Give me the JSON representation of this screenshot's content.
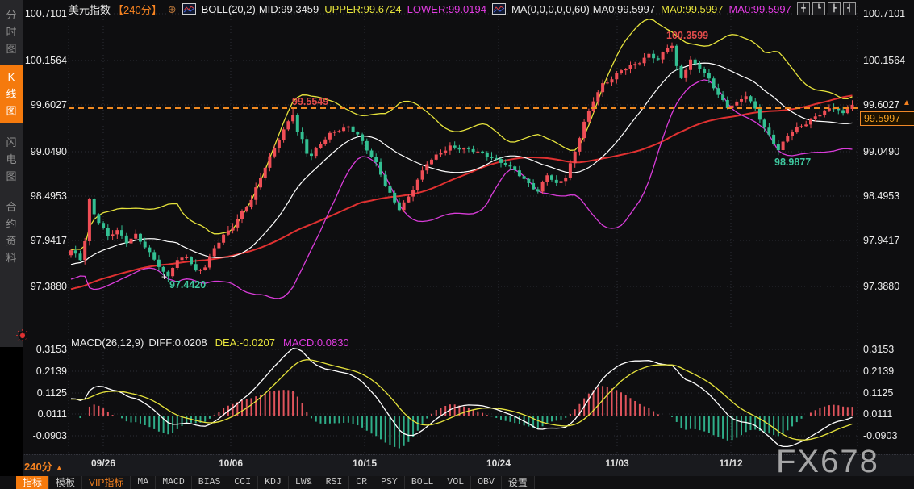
{
  "header": {
    "symbol": "美元指数",
    "period": "【240分】",
    "boll": {
      "name": "BOLL(20,2)",
      "mid": "MID:99.3459",
      "upper": "UPPER:99.6724",
      "lower": "LOWER:99.0194"
    },
    "ma": {
      "name": "MA(0,0,0,0,0,60)",
      "m1": "MA0:99.5997",
      "m2": "MA0:99.5997",
      "m3": "MA0:99.5997"
    }
  },
  "sidebar": {
    "items": [
      "分时图",
      "K线图",
      "闪电图",
      "合约资料"
    ]
  },
  "axis": {
    "price": [
      "100.7101",
      "100.1564",
      "99.6027",
      "99.0490",
      "98.4953",
      "97.9417",
      "97.3880"
    ],
    "macd": [
      "0.3153",
      "0.2139",
      "0.1125",
      "0.0111",
      "-0.0903"
    ],
    "dates": [
      "09/26",
      "10/06",
      "10/15",
      "10/24",
      "11/03",
      "11/12"
    ],
    "price_tag": "99.5997"
  },
  "macd_header": {
    "name": "MACD(26,12,9)",
    "diff": "DIFF:0.0208",
    "dea": "DEA:-0.0207",
    "macd": "MACD:0.0830"
  },
  "annotations": {
    "h_mid": "99.5549",
    "h_top": "100.3599",
    "l_left": "97.4420",
    "l_right": "98.9877",
    "cross": "+"
  },
  "footer": {
    "period": "240分",
    "arrow": "▲",
    "tabs": [
      "指标",
      "模板",
      "VIP指标",
      "MA",
      "MACD",
      "BIAS",
      "CCI",
      "KDJ",
      "LW&",
      "RSI",
      "CR",
      "PSY",
      "BOLL",
      "VOL",
      "OBV",
      "设置"
    ]
  },
  "topright_icons": [
    "╋",
    "┗",
    "┣",
    "┫"
  ],
  "watermark": "FX678",
  "chart_data": {
    "type": "candlestick",
    "symbol": "美元指数",
    "period": "240分",
    "title": "美元指数 240分 K线图 (BOLL 20,2 / MA60 / MACD 26,12,9)",
    "price_axis": [
      100.7101,
      100.1564,
      99.6027,
      99.049,
      98.4953,
      97.9417,
      97.388
    ],
    "macd_axis": [
      0.3153,
      0.2139,
      0.1125,
      0.0111,
      -0.0903
    ],
    "x_dates": [
      "09/26",
      "10/06",
      "10/15",
      "10/24",
      "11/03",
      "11/12"
    ],
    "current_price": 99.5997,
    "indicators": {
      "boll": {
        "mid": 99.3459,
        "upper": 99.6724,
        "lower": 99.0194
      },
      "ma60": 99.5997,
      "macd": {
        "diff": 0.0208,
        "dea": -0.0207,
        "macd": 0.083
      }
    },
    "close_keypoints": [
      [
        0,
        97.82
      ],
      [
        2,
        97.72
      ],
      [
        3,
        97.95
      ],
      [
        4,
        98.45
      ],
      [
        5,
        98.28
      ],
      [
        6,
        98.18
      ],
      [
        8,
        98.0
      ],
      [
        10,
        98.06
      ],
      [
        12,
        97.92
      ],
      [
        14,
        98.02
      ],
      [
        16,
        97.88
      ],
      [
        18,
        97.72
      ],
      [
        20,
        97.55
      ],
      [
        21,
        97.5
      ],
      [
        22,
        97.62
      ],
      [
        23,
        97.7
      ],
      [
        25,
        97.76
      ],
      [
        27,
        97.58
      ],
      [
        29,
        97.63
      ],
      [
        31,
        97.85
      ],
      [
        33,
        98.0
      ],
      [
        35,
        98.12
      ],
      [
        37,
        98.3
      ],
      [
        39,
        98.45
      ],
      [
        41,
        98.72
      ],
      [
        43,
        98.95
      ],
      [
        45,
        99.18
      ],
      [
        47,
        99.4
      ],
      [
        48,
        99.5
      ],
      [
        49,
        99.28
      ],
      [
        50,
        99.18
      ],
      [
        51,
        99.02
      ],
      [
        52,
        98.98
      ],
      [
        54,
        99.12
      ],
      [
        56,
        99.24
      ],
      [
        58,
        99.3
      ],
      [
        60,
        99.34
      ],
      [
        62,
        99.24
      ],
      [
        64,
        99.05
      ],
      [
        66,
        98.88
      ],
      [
        68,
        98.62
      ],
      [
        70,
        98.42
      ],
      [
        71,
        98.34
      ],
      [
        73,
        98.48
      ],
      [
        75,
        98.68
      ],
      [
        77,
        98.88
      ],
      [
        79,
        98.98
      ],
      [
        82,
        99.1
      ],
      [
        85,
        99.06
      ],
      [
        88,
        99.02
      ],
      [
        91,
        98.96
      ],
      [
        94,
        98.88
      ],
      [
        96,
        98.8
      ],
      [
        98,
        98.68
      ],
      [
        100,
        98.58
      ],
      [
        101,
        98.54
      ],
      [
        103,
        98.76
      ],
      [
        105,
        98.64
      ],
      [
        107,
        98.72
      ],
      [
        109,
        99.02
      ],
      [
        111,
        99.38
      ],
      [
        113,
        99.66
      ],
      [
        115,
        99.86
      ],
      [
        117,
        99.92
      ],
      [
        119,
        100.02
      ],
      [
        121,
        100.06
      ],
      [
        123,
        100.12
      ],
      [
        125,
        100.22
      ],
      [
        127,
        100.16
      ],
      [
        129,
        100.3
      ],
      [
        130,
        100.32
      ],
      [
        131,
        100.05
      ],
      [
        132,
        99.92
      ],
      [
        134,
        100.14
      ],
      [
        136,
        100.06
      ],
      [
        138,
        99.92
      ],
      [
        140,
        99.72
      ],
      [
        142,
        99.56
      ],
      [
        144,
        99.62
      ],
      [
        146,
        99.72
      ],
      [
        148,
        99.56
      ],
      [
        150,
        99.32
      ],
      [
        153,
        99.04
      ],
      [
        155,
        99.22
      ],
      [
        157,
        99.32
      ],
      [
        159,
        99.38
      ],
      [
        161,
        99.46
      ],
      [
        163,
        99.52
      ],
      [
        165,
        99.56
      ],
      [
        167,
        99.5
      ],
      [
        169,
        99.6
      ]
    ],
    "markers": [
      {
        "i": 21,
        "side": "low",
        "value": 97.442
      },
      {
        "i": 48,
        "side": "high",
        "value": 99.5549
      },
      {
        "i": 130,
        "side": "high",
        "value": 100.3599
      },
      {
        "i": 153,
        "side": "low",
        "value": 98.9877
      }
    ],
    "colors": {
      "up": "#ef4e56",
      "down": "#33bf92",
      "boll_upper": "#e6e33c",
      "boll_mid": "#ffffff",
      "boll_lower": "#d93cd9",
      "ma_long": "#e03131",
      "macd_pos": "#e0545c",
      "macd_neg": "#2fae89",
      "diff_line": "#ffffff",
      "dea_line": "#e6e33c",
      "price_line": "#ef8921",
      "grid": "#2c2d36"
    }
  }
}
